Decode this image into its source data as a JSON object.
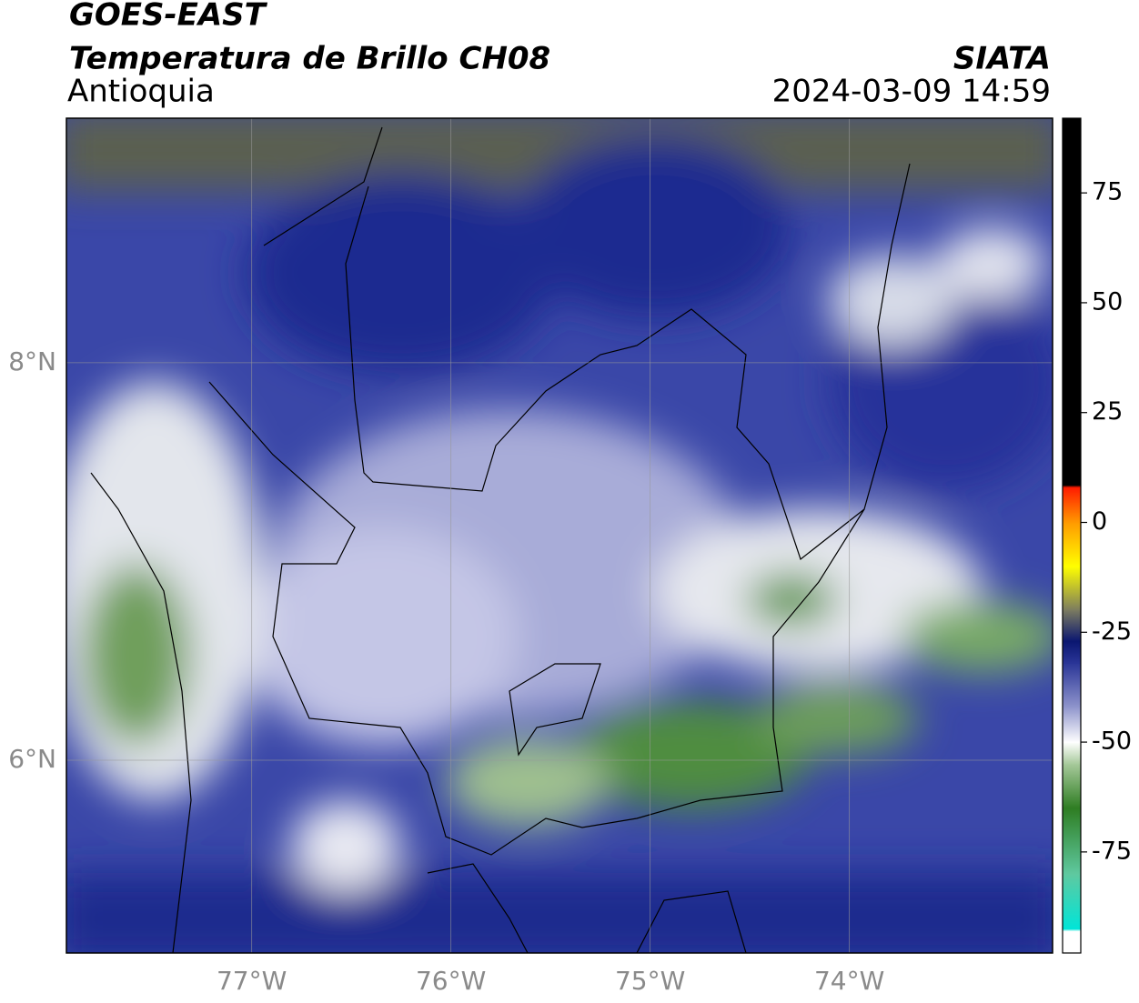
{
  "header": {
    "title": "GOES-EAST",
    "subtitle": "Temperatura de Brillo CH08",
    "region": "Antioquia",
    "source": "SIATA",
    "timestamp": "2024-03-09 14:59"
  },
  "map": {
    "xlim": [
      -77.93,
      -72.98
    ],
    "ylim": [
      5.03,
      9.23
    ],
    "xticks": [
      {
        "value": -77,
        "label": "77°W"
      },
      {
        "value": -76,
        "label": "76°W"
      },
      {
        "value": -75,
        "label": "75°W"
      },
      {
        "value": -74,
        "label": "74°W"
      }
    ],
    "yticks": [
      {
        "value": 6,
        "label": "6°N"
      },
      {
        "value": 8,
        "label": "8°N"
      }
    ],
    "grid": true
  },
  "colorbar": {
    "clim": [
      -98,
      92
    ],
    "ticks": [
      -75,
      -50,
      -25,
      0,
      25,
      50,
      75
    ],
    "stops": [
      {
        "value": -98,
        "color": "#ffffff"
      },
      {
        "value": -93,
        "color": "#ffffff"
      },
      {
        "value": -92.5,
        "color": "#00e5d8"
      },
      {
        "value": -80,
        "color": "#5fc9a0"
      },
      {
        "value": -65,
        "color": "#2e7d22"
      },
      {
        "value": -55,
        "color": "#a6c99a"
      },
      {
        "value": -50,
        "color": "#ffffff"
      },
      {
        "value": -42,
        "color": "#8f95cc"
      },
      {
        "value": -32,
        "color": "#2a3597"
      },
      {
        "value": -27,
        "color": "#0a1670"
      },
      {
        "value": -20,
        "color": "#7a7a60"
      },
      {
        "value": -10,
        "color": "#ffff00"
      },
      {
        "value": 0,
        "color": "#ff9a00"
      },
      {
        "value": 8,
        "color": "#ff1a00"
      },
      {
        "value": 8.5,
        "color": "#000000"
      },
      {
        "value": 92,
        "color": "#000000"
      }
    ]
  }
}
